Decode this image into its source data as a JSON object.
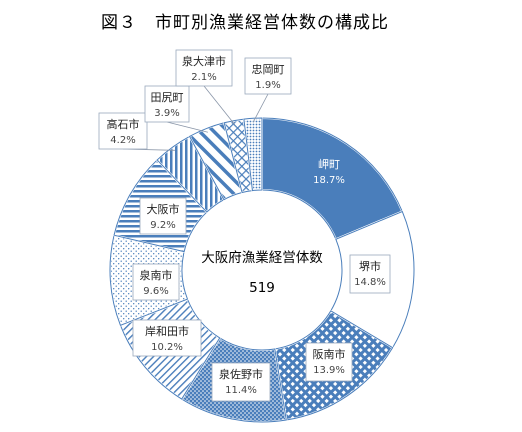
{
  "title": "図３　市町別漁業経営体数の構成比",
  "chart_data": {
    "type": "pie",
    "center_label": "大阪府漁業経営体数",
    "center_value": "519",
    "slices": [
      {
        "name": "岬町",
        "value": 18.7,
        "label": "18.7%",
        "color": "#4a7ebb",
        "pattern": "solid"
      },
      {
        "name": "堺市",
        "value": 14.8,
        "label": "14.8%",
        "color": "#4a7ebb",
        "pattern": "white"
      },
      {
        "name": "阪南市",
        "value": 13.9,
        "label": "13.9%",
        "color": "#4a7ebb",
        "pattern": "diagcross"
      },
      {
        "name": "泉佐野市",
        "value": 11.4,
        "label": "11.4%",
        "color": "#4a7ebb",
        "pattern": "dots-dense"
      },
      {
        "name": "岸和田市",
        "value": 10.2,
        "label": "10.2%",
        "color": "#4a7ebb",
        "pattern": "diag-light"
      },
      {
        "name": "泉南市",
        "value": 9.6,
        "label": "9.6%",
        "color": "#4a7ebb",
        "pattern": "dots-sparse"
      },
      {
        "name": "大阪市",
        "value": 9.2,
        "label": "9.2%",
        "color": "#4a7ebb",
        "pattern": "hstripes"
      },
      {
        "name": "高石市",
        "value": 4.2,
        "label": "4.2%",
        "color": "#4a7ebb",
        "pattern": "vstripes"
      },
      {
        "name": "田尻町",
        "value": 3.9,
        "label": "3.9%",
        "color": "#4a7ebb",
        "pattern": "wide-diag"
      },
      {
        "name": "泉大津市",
        "value": 2.1,
        "label": "2.1%",
        "color": "#4a7ebb",
        "pattern": "cross"
      },
      {
        "name": "忠岡町",
        "value": 1.9,
        "label": "1.9%",
        "color": "#4a7ebb",
        "pattern": "dots-medium"
      }
    ]
  }
}
